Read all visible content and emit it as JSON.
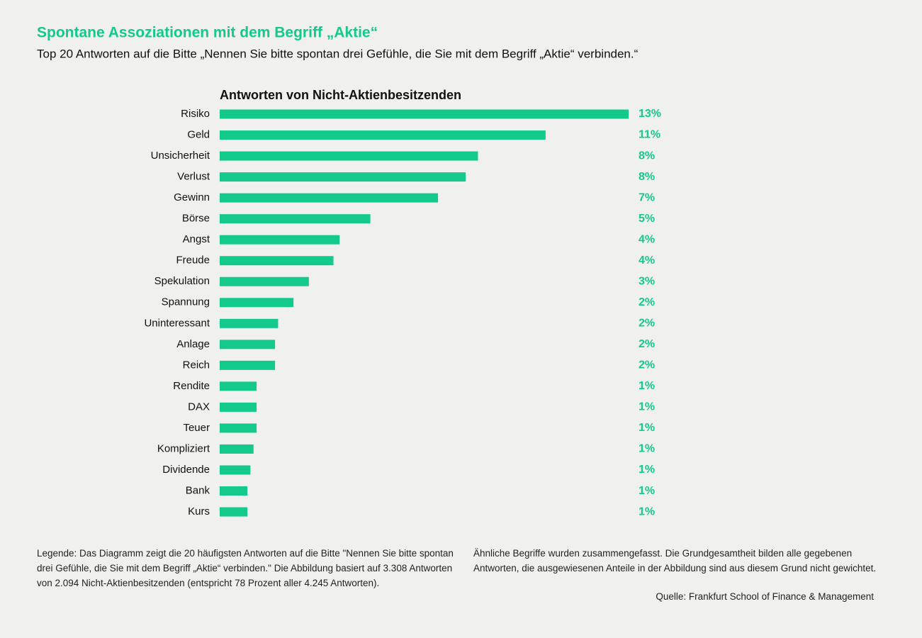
{
  "chart_data": {
    "type": "bar",
    "orientation": "horizontal",
    "title": "Spontane Assoziationen mit dem Begriff „Aktie“",
    "subtitle": "Top 20 Antworten auf die Bitte „Nennen Sie bitte spontan drei Gefühle, die Sie mit dem Begriff „Aktie“ verbinden.“",
    "chart_title": "Antworten von Nicht-Aktienbesitzenden",
    "categories": [
      "Risiko",
      "Geld",
      "Unsicherheit",
      "Verlust",
      "Gewinn",
      "Börse",
      "Angst",
      "Freude",
      "Spekulation",
      "Spannung",
      "Uninteressant",
      "Anlage",
      "Reich",
      "Rendite",
      "DAX",
      "Teuer",
      "Kompliziert",
      "Dividende",
      "Bank",
      "Kurs"
    ],
    "values": [
      13.3,
      10.6,
      8.4,
      8.0,
      7.1,
      4.9,
      3.9,
      3.7,
      2.9,
      2.4,
      1.9,
      1.8,
      1.8,
      1.2,
      1.2,
      1.2,
      1.1,
      1.0,
      0.9,
      0.9
    ],
    "value_labels": [
      "13%",
      "11%",
      "8%",
      "8%",
      "7%",
      "5%",
      "4%",
      "4%",
      "3%",
      "2%",
      "2%",
      "2%",
      "2%",
      "1%",
      "1%",
      "1%",
      "1%",
      "1%",
      "1%",
      "1%"
    ],
    "color": "#14c98c",
    "notes": [
      "Legende: Das Diagramm zeigt die 20 häufigsten Antworten auf die Bitte \"Nennen Sie bitte spontan drei Gefühle, die Sie mit dem Begriff „Aktie“ verbinden.\" Die Abbildung basiert auf 3.308 Antworten von 2.094 Nicht-Aktienbesitzenden (entspricht 78 Prozent aller 4.245 Antworten).",
      "Ähnliche Begriffe wurden zusammengefasst. Die Grundgesamtheit bilden alle gegebenen Antworten, die ausgewiesenen Anteile in der Abbildung sind aus diesem Grund nicht gewichtet."
    ],
    "source": "Quelle: Frankfurt School of Finance & Management"
  }
}
